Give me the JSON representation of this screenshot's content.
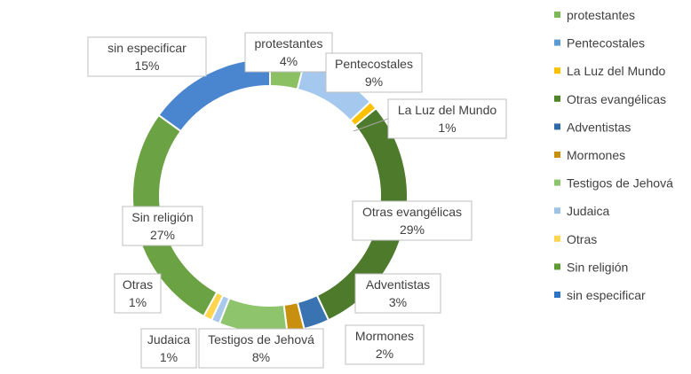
{
  "chart_data": {
    "type": "pie",
    "variant": "doughnut",
    "categories": [
      "protestantes",
      "Pentecostales",
      "La Luz del Mundo",
      "Otras evangélicas",
      "Adventistas",
      "Mormones",
      "Testigos de Jehová",
      "Judaica",
      "Otras",
      "Sin religión",
      "sin especificar"
    ],
    "values": [
      4,
      9,
      1,
      29,
      3,
      2,
      8,
      1,
      1,
      27,
      15
    ],
    "value_labels": [
      "4%",
      "9%",
      "1%",
      "29%",
      "3%",
      "2%",
      "8%",
      "1%",
      "1%",
      "27%",
      "15%"
    ],
    "colors": [
      "#8CC163",
      "#A5C8EE",
      "#FFC000",
      "#4E7A2C",
      "#3A73B2",
      "#C8900E",
      "#8DC46C",
      "#A9C9EC",
      "#FFD54F",
      "#6BA244",
      "#4A86CF"
    ],
    "legend_colors": [
      "#7DB955",
      "#5B9BD5",
      "#FFC000",
      "#4F8428",
      "#2E6AA8",
      "#C8900E",
      "#8DC46C",
      "#9DC3E6",
      "#FFD54F",
      "#5E9B35",
      "#2F75C5"
    ],
    "legend_position": "right",
    "start_angle_deg": 0
  }
}
